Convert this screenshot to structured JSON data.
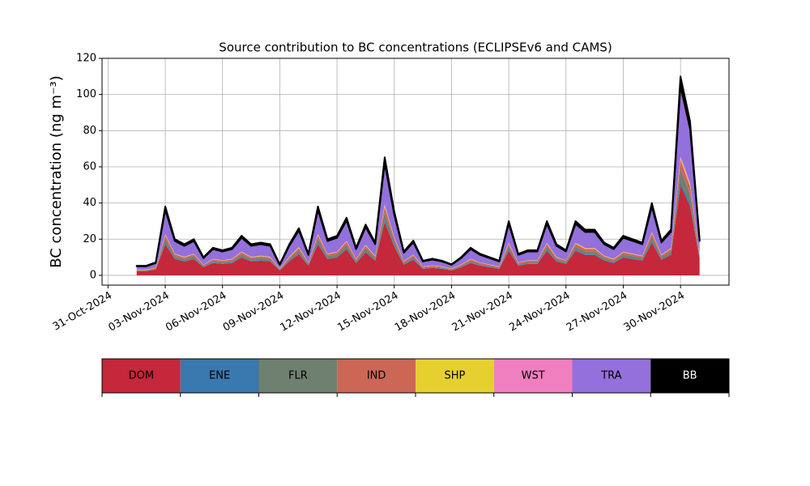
{
  "chart_data": {
    "type": "stacked_area",
    "title": "Source contribution to BC concentrations (ECLIPSEv6 and CAMS)",
    "y_label": "BC concentration (ng m⁻³)",
    "x": [
      "2024-11-01T12:00",
      "2024-11-02T00:00",
      "2024-11-02T12:00",
      "2024-11-03T00:00",
      "2024-11-03T12:00",
      "2024-11-04T00:00",
      "2024-11-04T12:00",
      "2024-11-05T00:00",
      "2024-11-05T12:00",
      "2024-11-06T00:00",
      "2024-11-06T12:00",
      "2024-11-07T00:00",
      "2024-11-07T12:00",
      "2024-11-08T00:00",
      "2024-11-08T12:00",
      "2024-11-09T00:00",
      "2024-11-09T12:00",
      "2024-11-10T00:00",
      "2024-11-10T12:00",
      "2024-11-11T00:00",
      "2024-11-11T12:00",
      "2024-11-12T00:00",
      "2024-11-12T12:00",
      "2024-11-13T00:00",
      "2024-11-13T12:00",
      "2024-11-14T00:00",
      "2024-11-14T12:00",
      "2024-11-15T00:00",
      "2024-11-15T12:00",
      "2024-11-16T00:00",
      "2024-11-16T12:00",
      "2024-11-17T00:00",
      "2024-11-17T12:00",
      "2024-11-18T00:00",
      "2024-11-18T12:00",
      "2024-11-19T00:00",
      "2024-11-19T12:00",
      "2024-11-20T00:00",
      "2024-11-20T12:00",
      "2024-11-21T00:00",
      "2024-11-21T12:00",
      "2024-11-22T00:00",
      "2024-11-22T12:00",
      "2024-11-23T00:00",
      "2024-11-23T12:00",
      "2024-11-24T00:00",
      "2024-11-24T12:00",
      "2024-11-25T00:00",
      "2024-11-25T12:00",
      "2024-11-26T00:00",
      "2024-11-26T12:00",
      "2024-11-27T00:00",
      "2024-11-27T12:00",
      "2024-11-28T00:00",
      "2024-11-28T12:00",
      "2024-11-29T00:00",
      "2024-11-29T12:00",
      "2024-11-30T00:00",
      "2024-11-30T12:00",
      "2024-12-01T00:00"
    ],
    "series": [
      {
        "name": "DOM",
        "color": "#c4283a",
        "values": [
          2.3,
          2.3,
          3.2,
          17.1,
          9,
          7.7,
          9,
          4.5,
          6.8,
          6.3,
          6.8,
          9.9,
          7.7,
          8.1,
          7.7,
          2.7,
          7.7,
          11.7,
          5.4,
          17.1,
          9,
          9.9,
          14.4,
          6.8,
          12.6,
          8.1,
          29.3,
          15.8,
          5.9,
          8.6,
          3.6,
          4.1,
          3.6,
          2.7,
          4.5,
          6.8,
          5.4,
          4.5,
          3.6,
          13.5,
          5.4,
          6.3,
          6.3,
          13.5,
          7.7,
          6.3,
          13.5,
          11.3,
          11.3,
          8.1,
          6.8,
          9.9,
          9,
          8.1,
          18,
          8.6,
          11.3,
          49.5,
          38.3,
          9
        ]
      },
      {
        "name": "ENE",
        "color": "#3a78b0",
        "values": [
          0.1,
          0.1,
          0.1,
          0.8,
          0.4,
          0.3,
          0.4,
          0.2,
          0.3,
          0.3,
          0.3,
          0.4,
          0.3,
          0.4,
          0.3,
          0.1,
          0.3,
          0.5,
          0.2,
          0.8,
          0.4,
          0.4,
          0.6,
          0.3,
          0.6,
          0.4,
          1.3,
          0.7,
          0.3,
          0.4,
          0.2,
          0.2,
          0.2,
          0.1,
          0.2,
          0.3,
          0.2,
          0.2,
          0.2,
          0.6,
          0.2,
          0.3,
          0.3,
          0.6,
          0.3,
          0.3,
          0.6,
          0.5,
          0.5,
          0.4,
          0.3,
          0.4,
          0.4,
          0.4,
          0.8,
          0.4,
          0.5,
          2.2,
          1.7,
          0.4
        ]
      },
      {
        "name": "FLR",
        "color": "#6e8070",
        "values": [
          0.3,
          0.3,
          0.4,
          2.3,
          1.2,
          1,
          1.2,
          0.6,
          0.9,
          0.8,
          0.9,
          1.3,
          1,
          1.1,
          1,
          0.4,
          1,
          1.6,
          0.7,
          2.3,
          1.2,
          1.3,
          1.9,
          0.9,
          1.7,
          1.1,
          3.9,
          2.1,
          0.8,
          1.1,
          0.5,
          0.5,
          0.5,
          0.4,
          0.6,
          0.9,
          0.7,
          0.6,
          0.5,
          1.8,
          0.7,
          0.8,
          0.8,
          1.8,
          1,
          0.8,
          1.8,
          1.5,
          1.5,
          1.1,
          0.9,
          1.3,
          1.2,
          1.1,
          2.4,
          1.1,
          1.5,
          6.6,
          5.1,
          1.2
        ]
      },
      {
        "name": "IND",
        "color": "#cc6655",
        "values": [
          0.3,
          0.3,
          0.4,
          1.9,
          1,
          0.9,
          1,
          0.5,
          0.8,
          0.7,
          0.8,
          1.1,
          0.9,
          0.9,
          0.9,
          0.3,
          0.9,
          1.3,
          0.6,
          1.9,
          1,
          1.1,
          1.6,
          0.8,
          1.4,
          0.9,
          3.3,
          1.8,
          0.7,
          1,
          0.4,
          0.5,
          0.4,
          0.3,
          0.5,
          0.8,
          0.6,
          0.5,
          0.4,
          1.5,
          0.6,
          0.7,
          0.7,
          1.5,
          0.9,
          0.7,
          1.5,
          1.3,
          1.3,
          0.9,
          0.8,
          1.1,
          1,
          0.9,
          2,
          1,
          1.3,
          5.5,
          4.3,
          1
        ]
      },
      {
        "name": "SHP",
        "color": "#e6d030",
        "values": [
          0.1,
          0.1,
          0.1,
          0.4,
          0.2,
          0.2,
          0.2,
          0.1,
          0.2,
          0.1,
          0.2,
          0.2,
          0.2,
          0.2,
          0.2,
          0.1,
          0.2,
          0.3,
          0.1,
          0.4,
          0.2,
          0.2,
          0.3,
          0.2,
          0.3,
          0.2,
          0.7,
          0.4,
          0.1,
          0.2,
          0.1,
          0.1,
          0.1,
          0.1,
          0.1,
          0.2,
          0.1,
          0.1,
          0.1,
          0.3,
          0.1,
          0.1,
          0.1,
          0.3,
          0.2,
          0.1,
          0.3,
          0.3,
          0.3,
          0.2,
          0.2,
          0.2,
          0.2,
          0.2,
          0.4,
          0.2,
          0.3,
          1.1,
          0.9,
          0.2
        ]
      },
      {
        "name": "WST",
        "color": "#f07fbf",
        "values": [
          0.1,
          0.1,
          0.1,
          0.4,
          0.2,
          0.2,
          0.2,
          0.1,
          0.2,
          0.1,
          0.2,
          0.2,
          0.2,
          0.2,
          0.2,
          0.1,
          0.2,
          0.3,
          0.1,
          0.4,
          0.2,
          0.2,
          0.3,
          0.2,
          0.3,
          0.2,
          0.7,
          0.4,
          0.1,
          0.2,
          0.1,
          0.1,
          0.1,
          0.1,
          0.1,
          0.2,
          0.1,
          0.1,
          0.1,
          0.3,
          0.1,
          0.1,
          0.1,
          0.3,
          0.2,
          0.1,
          0.3,
          0.3,
          0.3,
          0.2,
          0.2,
          0.2,
          0.2,
          0.2,
          0.4,
          0.2,
          0.3,
          1.1,
          0.9,
          0.2
        ]
      },
      {
        "name": "TRA",
        "color": "#9370db",
        "values": [
          1.8,
          1.8,
          2.5,
          13.3,
          7,
          6,
          7,
          3.5,
          5.3,
          4.9,
          5.3,
          7.7,
          6,
          6.3,
          6,
          2.1,
          6,
          9.1,
          4.2,
          13.3,
          7,
          7.7,
          11.2,
          5.3,
          9.8,
          6.3,
          22.8,
          12.3,
          4.6,
          6.7,
          2.8,
          3.2,
          2.8,
          2.1,
          3.5,
          5.3,
          4.2,
          3.5,
          2.8,
          10.5,
          4.2,
          4.9,
          4.9,
          10.5,
          6,
          4.9,
          10.5,
          8.8,
          8.8,
          6.3,
          5.3,
          7.7,
          7,
          6.3,
          14,
          6.7,
          8.8,
          38.5,
          29.8,
          7
        ]
      },
      {
        "name": "BB",
        "color": "#000000",
        "values": [
          0.3,
          0.3,
          0.4,
          1.9,
          1,
          0.9,
          1,
          0.5,
          0.8,
          0.7,
          0.8,
          1.1,
          0.9,
          0.9,
          0.9,
          0.3,
          0.9,
          1.3,
          0.6,
          1.9,
          1,
          1.1,
          1.6,
          0.8,
          1.4,
          0.9,
          3.3,
          1.8,
          0.7,
          1,
          0.4,
          0.5,
          0.4,
          0.3,
          0.5,
          0.8,
          0.6,
          0.5,
          0.4,
          1.5,
          0.6,
          0.7,
          0.7,
          1.5,
          0.9,
          0.7,
          1.5,
          1.3,
          1.3,
          0.9,
          0.8,
          1.1,
          1,
          0.9,
          2,
          1,
          1.3,
          5.5,
          4.3,
          1
        ]
      }
    ],
    "xlim": [
      "2024-10-30T16:30",
      "2024-12-02T13:00"
    ],
    "xticks": [
      {
        "value": "2024-10-31",
        "label": "31-Oct-2024"
      },
      {
        "value": "2024-11-03",
        "label": "03-Nov-2024"
      },
      {
        "value": "2024-11-06",
        "label": "06-Nov-2024"
      },
      {
        "value": "2024-11-09",
        "label": "09-Nov-2024"
      },
      {
        "value": "2024-11-12",
        "label": "12-Nov-2024"
      },
      {
        "value": "2024-11-15",
        "label": "15-Nov-2024"
      },
      {
        "value": "2024-11-18",
        "label": "18-Nov-2024"
      },
      {
        "value": "2024-11-21",
        "label": "21-Nov-2024"
      },
      {
        "value": "2024-11-24",
        "label": "24-Nov-2024"
      },
      {
        "value": "2024-11-27",
        "label": "27-Nov-2024"
      },
      {
        "value": "2024-11-30",
        "label": "30-Nov-2024"
      }
    ],
    "ylim": [
      -5.4,
      120
    ],
    "yticks": [
      0,
      20,
      40,
      60,
      80,
      100,
      120
    ],
    "grid": true
  }
}
